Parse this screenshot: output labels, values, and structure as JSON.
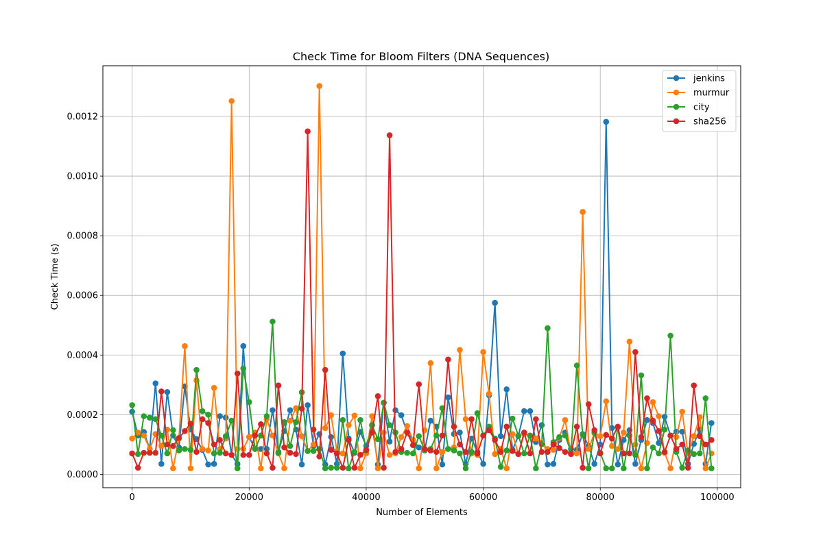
{
  "chart_data": {
    "type": "line",
    "title": "Check Time for Bloom Filters (DNA Sequences)",
    "xlabel": "Number of Elements",
    "ylabel": "Check Time (s)",
    "xlim": [
      -5000,
      104000
    ],
    "ylim": [
      -4.5e-05,
      0.00137
    ],
    "xticks": [
      0,
      20000,
      40000,
      60000,
      80000,
      100000
    ],
    "xtick_labels": [
      "0",
      "20000",
      "40000",
      "60000",
      "80000",
      "100000"
    ],
    "yticks": [
      0.0,
      0.0002,
      0.0004,
      0.0006,
      0.0008,
      0.001,
      0.0012
    ],
    "ytick_labels": [
      "0.0000",
      "0.0002",
      "0.0004",
      "0.0006",
      "0.0008",
      "0.0010",
      "0.0012"
    ],
    "grid": true,
    "legend_position": "top-right",
    "x": [
      0,
      1000,
      2000,
      3000,
      4000,
      5000,
      6000,
      7000,
      8000,
      9000,
      10000,
      11000,
      12000,
      13000,
      14000,
      15000,
      16000,
      17000,
      18000,
      19000,
      20000,
      21000,
      22000,
      23000,
      24000,
      25000,
      26000,
      27000,
      28000,
      29000,
      30000,
      31000,
      32000,
      33000,
      34000,
      35000,
      36000,
      37000,
      38000,
      39000,
      40000,
      41000,
      42000,
      43000,
      44000,
      45000,
      46000,
      47000,
      48000,
      49000,
      50000,
      51000,
      52000,
      53000,
      54000,
      55000,
      56000,
      57000,
      58000,
      59000,
      60000,
      61000,
      62000,
      63000,
      64000,
      65000,
      66000,
      67000,
      68000,
      69000,
      70000,
      71000,
      72000,
      73000,
      74000,
      75000,
      76000,
      77000,
      78000,
      79000,
      80000,
      81000,
      82000,
      83000,
      84000,
      85000,
      86000,
      87000,
      88000,
      89000,
      90000,
      91000,
      92000,
      93000,
      94000,
      95000,
      96000,
      97000,
      98000,
      99000
    ],
    "series": [
      {
        "name": "jenkins",
        "color": "#1f77b4",
        "values": [
          0.00021,
          0.00013,
          0.000142,
          8.5e-05,
          0.000305,
          3.5e-05,
          0.000276,
          0.00013,
          9e-05,
          0.000295,
          0.00015,
          0.000118,
          8.2e-05,
          3.3e-05,
          3.5e-05,
          0.000195,
          0.00019,
          6.5e-05,
          3.5e-05,
          0.00043,
          0.000125,
          8.5e-05,
          8.5e-05,
          8.5e-05,
          0.000215,
          7.5e-05,
          0.000145,
          0.000215,
          0.00015,
          3.3e-05,
          0.000232,
          9.5e-05,
          0.000135,
          3.3e-05,
          0.000125,
          3.5e-05,
          0.000405,
          0.00012,
          7.2e-05,
          0.000142,
          9.5e-05,
          0.000165,
          3.3e-05,
          0.00024,
          0.00011,
          0.000215,
          0.000198,
          0.00014,
          0.000115,
          9e-05,
          8e-05,
          0.00018,
          0.00016,
          3.3e-05,
          0.000258,
          0.000135,
          0.00014,
          3.5e-05,
          0.00012,
          7.5e-05,
          3.5e-05,
          0.000265,
          0.000575,
          0.000128,
          0.000285,
          8.2e-05,
          0.000128,
          0.000212,
          0.000212,
          0.000108,
          0.000165,
          3.3e-05,
          3.5e-05,
          0.000115,
          0.00014,
          8.5e-05,
          8.2e-05,
          0.000135,
          9.5e-05,
          3.5e-05,
          0.0001,
          0.001182,
          0.000155,
          3.3e-05,
          0.000115,
          0.000148,
          3.5e-05,
          0.000115,
          0.000182,
          0.000172,
          0.000105,
          0.000193,
          0.00013,
          0.000143,
          0.000143,
          3.5e-05,
          0.000102,
          0.00015,
          3.5e-05,
          0.000172
        ]
      },
      {
        "name": "murmur",
        "color": "#ff7f0e",
        "values": [
          0.00012,
          0.00014,
          0.00013,
          8.5e-05,
          0.000135,
          9.5e-05,
          0.00015,
          2e-05,
          0.00012,
          0.00043,
          2e-05,
          0.000315,
          8.5e-05,
          8e-05,
          0.00029,
          8.5e-05,
          0.00012,
          0.001252,
          8.5e-05,
          8.5e-05,
          0.000125,
          0.00014,
          2e-05,
          0.000185,
          0.00013,
          7e-05,
          2e-05,
          0.00018,
          0.000222,
          0.000128,
          7.8e-05,
          0.0001,
          0.001302,
          0.000155,
          0.000198,
          7.8e-05,
          7e-05,
          0.000165,
          0.000197,
          2e-05,
          7e-05,
          0.000195,
          2e-05,
          0.00014,
          6.5e-05,
          7e-05,
          0.000125,
          0.000162,
          0.000115,
          2e-05,
          0.000148,
          0.000373,
          2e-05,
          7.5e-05,
          8.5e-05,
          9e-05,
          0.000417,
          0.000185,
          7e-05,
          6.5e-05,
          0.00041,
          0.00027,
          6.8e-05,
          8.5e-05,
          2e-05,
          0.000135,
          6.8e-05,
          0.000135,
          0.00013,
          0.00012,
          0.000105,
          8.5e-05,
          8.2e-05,
          0.000122,
          0.000182,
          6.8e-05,
          7e-05,
          0.00088,
          8.5e-05,
          0.000138,
          0.000128,
          0.000245,
          9.5e-05,
          8.5e-05,
          0.00014,
          0.000445,
          0.0001,
          2e-05,
          0.000105,
          0.000242,
          0.000195,
          7.2e-05,
          2e-05,
          0.000125,
          0.00021,
          7e-05,
          0.000128,
          0.000192,
          2e-05,
          7e-05
        ]
      },
      {
        "name": "city",
        "color": "#2ca02c",
        "values": [
          0.000232,
          6.8e-05,
          0.000195,
          0.00019,
          0.000185,
          0.00013,
          7e-05,
          0.000148,
          8e-05,
          8.5e-05,
          8.2e-05,
          0.00035,
          0.000212,
          0.0002,
          7e-05,
          7.2e-05,
          0.000128,
          0.00018,
          2e-05,
          0.000355,
          0.000242,
          8.5e-05,
          0.00013,
          0.000195,
          0.000512,
          7.2e-05,
          0.000175,
          9.5e-05,
          0.000175,
          0.000275,
          7.8e-05,
          7.8e-05,
          8.5e-05,
          2e-05,
          2.2e-05,
          2.2e-05,
          0.000182,
          2e-05,
          7.5e-05,
          0.000182,
          8e-05,
          0.000165,
          0.000118,
          0.00024,
          0.000165,
          0.00014,
          7.5e-05,
          7.2e-05,
          7e-05,
          0.000128,
          8.2e-05,
          8.5e-05,
          0.00013,
          0.000222,
          8.5e-05,
          8e-05,
          7e-05,
          2e-05,
          7.5e-05,
          0.000205,
          0.00013,
          0.00016,
          0.00012,
          2.5e-05,
          8e-05,
          0.000187,
          0.00013,
          7e-05,
          0.00013,
          2e-05,
          0.0001,
          0.00049,
          0.000108,
          0.000125,
          0.00013,
          7.5e-05,
          0.000365,
          0.000132,
          2e-05,
          0.00014,
          7.2e-05,
          2e-05,
          2e-05,
          0.000158,
          2e-05,
          0.00013,
          6.5e-05,
          0.000332,
          2e-05,
          9e-05,
          7e-05,
          0.00015,
          0.000465,
          7.5e-05,
          2.2e-05,
          8e-05,
          6.8e-05,
          7e-05,
          0.000255,
          2e-05
        ]
      },
      {
        "name": "sha256",
        "color": "#d62728",
        "values": [
          7e-05,
          2.2e-05,
          7.2e-05,
          7.2e-05,
          7.2e-05,
          0.000278,
          0.0001,
          9.5e-05,
          0.000122,
          0.000145,
          0.00017,
          7.5e-05,
          0.000185,
          0.000172,
          0.0001,
          0.000115,
          7e-05,
          6.5e-05,
          0.000338,
          6.5e-05,
          6.5e-05,
          0.00013,
          0.000168,
          7e-05,
          2.2e-05,
          0.000298,
          9e-05,
          7.2e-05,
          6.8e-05,
          0.00022,
          0.00115,
          0.00015,
          6e-05,
          0.00035,
          8.2e-05,
          7e-05,
          2.2e-05,
          0.000115,
          2.2e-05,
          6.5e-05,
          8.2e-05,
          0.00014,
          0.000262,
          2.2e-05,
          0.001137,
          7.5e-05,
          8.5e-05,
          0.00014,
          9.8e-05,
          0.000302,
          8.5e-05,
          8e-05,
          7.5e-05,
          0.00013,
          0.000385,
          0.00016,
          0.0001,
          7.5e-05,
          0.000185,
          7e-05,
          0.00013,
          0.000148,
          0.000115,
          7.5e-05,
          0.00016,
          7.8e-05,
          6.8e-05,
          0.00014,
          7e-05,
          0.000185,
          7.5e-05,
          7.5e-05,
          0.0001,
          8.8e-05,
          7.5e-05,
          6.8e-05,
          0.00016,
          2.2e-05,
          0.000235,
          0.000148,
          7e-05,
          0.000132,
          0.00012,
          0.00016,
          7e-05,
          7e-05,
          0.00041,
          0.000125,
          0.000255,
          0.00018,
          0.000145,
          7.5e-05,
          0.00013,
          8.5e-05,
          0.0001,
          2.2e-05,
          0.000298,
          0.000128,
          0.0001,
          0.000115
        ]
      }
    ]
  }
}
